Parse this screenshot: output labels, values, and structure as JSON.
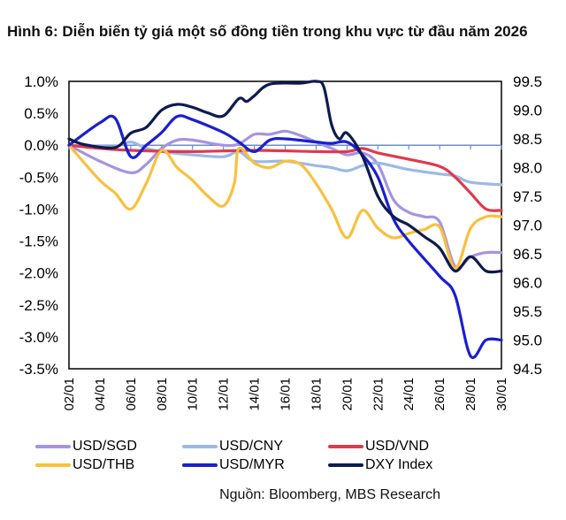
{
  "title": {
    "label": "Hình 6:",
    "text": "Diễn biến tỷ giá một số đồng tiền trong khu vực từ đầu năm 2026"
  },
  "source": "Nguồn: Bloomberg, MBS Research",
  "chart_data": {
    "type": "line",
    "title": "Hình 6: Diễn biến tỷ giá một số đồng tiền trong khu vực từ đầu năm 2026",
    "xlabel": "",
    "ylabel_left": "",
    "ylabel_right": "",
    "x_unit": "day of January 2026",
    "xlim": [
      2,
      30
    ],
    "x_ticks": [
      2,
      4,
      6,
      8,
      10,
      12,
      14,
      16,
      18,
      20,
      22,
      24,
      26,
      28,
      30
    ],
    "x_tick_labels": [
      "02/01",
      "04/01",
      "06/01",
      "08/01",
      "10/01",
      "12/01",
      "14/01",
      "16/01",
      "18/01",
      "20/01",
      "22/01",
      "24/01",
      "26/01",
      "28/01",
      "30/01"
    ],
    "ylim_left": [
      -3.5,
      1.0
    ],
    "y_ticks_left": [
      1.0,
      0.5,
      0.0,
      -0.5,
      -1.0,
      -1.5,
      -2.0,
      -2.5,
      -3.0,
      -3.5
    ],
    "y_tick_labels_left": [
      "1.0%",
      "0.5%",
      "0.0%",
      "-0.5%",
      "-1.0%",
      "-1.5%",
      "-2.0%",
      "-2.5%",
      "-3.0%",
      "-3.5%"
    ],
    "ylim_right": [
      94.5,
      99.5
    ],
    "y_ticks_right": [
      99.5,
      99.0,
      98.5,
      98.0,
      97.5,
      97.0,
      96.5,
      96.0,
      95.5,
      95.0,
      94.5
    ],
    "y_tick_labels_right": [
      "99.5",
      "99.0",
      "98.5",
      "98.0",
      "97.5",
      "97.0",
      "96.5",
      "96.0",
      "95.5",
      "95.0",
      "94.5"
    ],
    "grid": false,
    "zero_line": true,
    "legend_position": "bottom",
    "series": [
      {
        "name": "USD/SGD",
        "axis": "left",
        "color": "#a594e0",
        "x": [
          2,
          4,
          6,
          7,
          8,
          9,
          10,
          12,
          13,
          14,
          15,
          16,
          17,
          18,
          19,
          20,
          21,
          22,
          23,
          24,
          25,
          26,
          27,
          28,
          29,
          30
        ],
        "y": [
          0,
          -0.25,
          -0.43,
          -0.3,
          -0.05,
          0.08,
          0.08,
          0.0,
          0.02,
          0.17,
          0.17,
          0.22,
          0.15,
          0.05,
          -0.05,
          -0.15,
          -0.12,
          -0.3,
          -0.85,
          -1.05,
          -1.12,
          -1.2,
          -1.9,
          -1.75,
          -1.68,
          -1.68
        ]
      },
      {
        "name": "USD/CNY",
        "axis": "left",
        "color": "#9bb9e6",
        "x": [
          2,
          4,
          5,
          6,
          7,
          8,
          10,
          12,
          13,
          14,
          16,
          18,
          19,
          20,
          21,
          22,
          24,
          26,
          27,
          28,
          30
        ],
        "y": [
          0,
          -0.02,
          -0.02,
          0.05,
          -0.05,
          -0.1,
          -0.15,
          -0.18,
          -0.1,
          -0.25,
          -0.25,
          -0.32,
          -0.35,
          -0.4,
          -0.32,
          -0.28,
          -0.38,
          -0.45,
          -0.48,
          -0.58,
          -0.62
        ]
      },
      {
        "name": "USD/VND",
        "axis": "left",
        "color": "#e0394d",
        "x": [
          2,
          4,
          6,
          10,
          14,
          18,
          20,
          21,
          22,
          24,
          26,
          27,
          28,
          29,
          30
        ],
        "y": [
          0,
          -0.05,
          -0.08,
          -0.1,
          -0.08,
          -0.1,
          -0.1,
          -0.05,
          -0.12,
          -0.22,
          -0.33,
          -0.5,
          -0.75,
          -1.0,
          -1.02
        ]
      },
      {
        "name": "USD/THB",
        "axis": "left",
        "color": "#f9c03d",
        "x": [
          2,
          4,
          5,
          6,
          7,
          8,
          9,
          10,
          11,
          12,
          12.7,
          13,
          14,
          15,
          16,
          17,
          18,
          19,
          20,
          21,
          22,
          23,
          24,
          25,
          26,
          27,
          28,
          29,
          30
        ],
        "y": [
          0,
          -0.55,
          -0.75,
          -1.0,
          -0.6,
          -0.08,
          -0.35,
          -0.55,
          -0.8,
          -0.95,
          -0.6,
          -0.05,
          -0.28,
          -0.35,
          -0.25,
          -0.3,
          -0.6,
          -1.0,
          -1.45,
          -1.02,
          -1.3,
          -1.45,
          -1.38,
          -1.32,
          -1.28,
          -1.93,
          -1.3,
          -1.12,
          -1.12
        ]
      },
      {
        "name": "USD/MYR",
        "axis": "left",
        "color": "#1a1fd1",
        "x": [
          2,
          4,
          5,
          6,
          7,
          8,
          9,
          10,
          12,
          13,
          14,
          15,
          16,
          18,
          19,
          20,
          21,
          22,
          23,
          24,
          26,
          27,
          28,
          29,
          30
        ],
        "y": [
          0,
          0.35,
          0.42,
          -0.18,
          0.0,
          0.2,
          0.45,
          0.4,
          0.2,
          0.05,
          -0.1,
          0.08,
          0.1,
          0.05,
          0.03,
          0.05,
          -0.15,
          -0.5,
          -1.15,
          -1.5,
          -2.05,
          -2.35,
          -3.3,
          -3.05,
          -3.05
        ]
      },
      {
        "name": "DXY Index",
        "axis": "right",
        "color": "#0d1b4f",
        "x": [
          2,
          3,
          5,
          6,
          7,
          8,
          9,
          10,
          11,
          12,
          13,
          13.5,
          14,
          15,
          17,
          18,
          18.5,
          19,
          19.5,
          20,
          21,
          22,
          23,
          24,
          25,
          26,
          27,
          28,
          29,
          30
        ],
        "y": [
          98.5,
          98.4,
          98.35,
          98.6,
          98.7,
          99.0,
          99.1,
          99.05,
          98.95,
          98.9,
          99.2,
          99.15,
          99.25,
          99.45,
          99.47,
          99.5,
          99.4,
          98.75,
          98.5,
          98.6,
          98.2,
          97.5,
          97.15,
          97.0,
          96.8,
          96.6,
          96.2,
          96.45,
          96.2,
          96.2
        ]
      }
    ]
  }
}
